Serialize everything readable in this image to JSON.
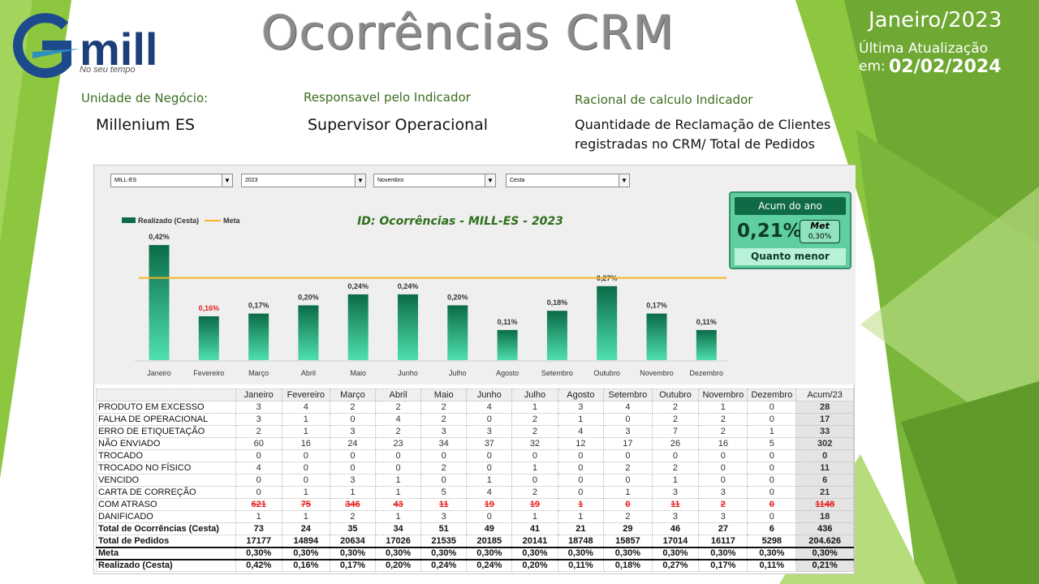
{
  "header": {
    "title": "Ocorrências CRM",
    "period": "Janeiro/2023",
    "update_label": "Última Atualização",
    "update_prefix": "em:",
    "update_date": "02/02/2024",
    "logo_text": "mill",
    "logo_sub": "No seu tempo"
  },
  "info": {
    "unit_label": "Unidade de Negócio:",
    "unit_value": "Millenium ES",
    "owner_label": "Responsavel pelo Indicador",
    "owner_value": "Supervisor Operacional",
    "calc_label": "Racional de calculo Indicador",
    "calc_value": "Quantidade de Reclamação de Clientes registradas no CRM/ Total de Pedidos"
  },
  "filters": {
    "unit": "MILL-ES",
    "year": "2023",
    "month": "Novembro",
    "basket": "Cesta"
  },
  "kpi": {
    "head": "Acum do ano",
    "value": "0,21%",
    "met_label": "Met",
    "met_value": "0,30%",
    "foot": "Quanto menor"
  },
  "chart_data": {
    "type": "bar",
    "title": "ID: Ocorrências - MILL-ES - 2023",
    "categories": [
      "Janeiro",
      "Fevereiro",
      "Março",
      "Abril",
      "Maio",
      "Junho",
      "Julho",
      "Agosto",
      "Setembro",
      "Outubro",
      "Novembro",
      "Dezembro"
    ],
    "series": [
      {
        "name": "Realizado (Cesta)",
        "values": [
          0.42,
          0.16,
          0.17,
          0.2,
          0.24,
          0.24,
          0.2,
          0.11,
          0.18,
          0.27,
          0.17,
          0.11
        ],
        "color": "#1a9a6c"
      },
      {
        "name": "Meta",
        "values": [
          0.3,
          0.3,
          0.3,
          0.3,
          0.3,
          0.3,
          0.3,
          0.3,
          0.3,
          0.3,
          0.3,
          0.3
        ],
        "color": "#f5b324"
      }
    ],
    "labels": [
      "0,42%",
      "0,16%",
      "0,17%",
      "0,20%",
      "0,24%",
      "0,24%",
      "0,20%",
      "0,11%",
      "0,18%",
      "0,27%",
      "0,17%",
      "0,11%"
    ],
    "label_colors": [
      "#333",
      "#e52222",
      "#333",
      "#333",
      "#333",
      "#333",
      "#333",
      "#333",
      "#333",
      "#333",
      "#333",
      "#333"
    ],
    "ylim": [
      0,
      0.45
    ],
    "legend": "top-left",
    "grid": false
  },
  "table": {
    "columns": [
      "Janeiro",
      "Fevereiro",
      "Março",
      "Abril",
      "Maio",
      "Junho",
      "Julho",
      "Agosto",
      "Setembro",
      "Outubro",
      "Novembro",
      "Dezembro",
      "Acum/23"
    ],
    "rows": [
      {
        "label": "PRODUTO EM EXCESSO",
        "values": [
          "3",
          "4",
          "2",
          "2",
          "2",
          "4",
          "1",
          "3",
          "4",
          "2",
          "1",
          "0"
        ],
        "total": "28"
      },
      {
        "label": "FALHA DE OPERACIONAL",
        "values": [
          "3",
          "1",
          "0",
          "4",
          "2",
          "0",
          "2",
          "1",
          "0",
          "2",
          "2",
          "0"
        ],
        "total": "17"
      },
      {
        "label": "ERRO DE ETIQUETAÇÃO",
        "values": [
          "2",
          "1",
          "3",
          "2",
          "3",
          "3",
          "2",
          "4",
          "3",
          "7",
          "2",
          "1"
        ],
        "total": "33"
      },
      {
        "label": "NÃO ENVIADO",
        "values": [
          "60",
          "16",
          "24",
          "23",
          "34",
          "37",
          "32",
          "12",
          "17",
          "26",
          "16",
          "5"
        ],
        "total": "302"
      },
      {
        "label": "TROCADO",
        "values": [
          "0",
          "0",
          "0",
          "0",
          "0",
          "0",
          "0",
          "0",
          "0",
          "0",
          "0",
          "0"
        ],
        "total": "0"
      },
      {
        "label": "TROCADO NO FÍSICO",
        "values": [
          "4",
          "0",
          "0",
          "0",
          "2",
          "0",
          "1",
          "0",
          "2",
          "2",
          "0",
          "0"
        ],
        "total": "11"
      },
      {
        "label": "VENCIDO",
        "values": [
          "0",
          "0",
          "3",
          "1",
          "0",
          "1",
          "0",
          "0",
          "0",
          "1",
          "0",
          "0"
        ],
        "total": "6"
      },
      {
        "label": "CARTA DE CORREÇÃO",
        "values": [
          "0",
          "1",
          "1",
          "1",
          "5",
          "4",
          "2",
          "0",
          "1",
          "3",
          "3",
          "0"
        ],
        "total": "21"
      },
      {
        "label": "COM ATRASO",
        "values": [
          "621",
          "75",
          "346",
          "43",
          "11",
          "19",
          "19",
          "1",
          "0",
          "11",
          "2",
          "0"
        ],
        "total": "1148",
        "struck": true
      },
      {
        "label": "DANIFICADO",
        "values": [
          "1",
          "1",
          "2",
          "1",
          "3",
          "0",
          "1",
          "1",
          "2",
          "3",
          "3",
          "0"
        ],
        "total": "18"
      }
    ],
    "total_occ": {
      "label": "Total de Ocorrências (Cesta)",
      "values": [
        "73",
        "24",
        "35",
        "34",
        "51",
        "49",
        "41",
        "21",
        "29",
        "46",
        "27",
        "6"
      ],
      "total": "436"
    },
    "total_orders": {
      "label": "Total de Pedidos",
      "values": [
        "17177",
        "14894",
        "20634",
        "17026",
        "21535",
        "20185",
        "20141",
        "18748",
        "15857",
        "17014",
        "16117",
        "5298"
      ],
      "total": "204.626"
    },
    "meta": {
      "label": "Meta",
      "values": [
        "0,30%",
        "0,30%",
        "0,30%",
        "0,30%",
        "0,30%",
        "0,30%",
        "0,30%",
        "0,30%",
        "0,30%",
        "0,30%",
        "0,30%",
        "0,30%"
      ],
      "total": "0,30%"
    },
    "realized": {
      "label": "Realizado (Cesta)",
      "values": [
        "0,42%",
        "0,16%",
        "0,17%",
        "0,20%",
        "0,24%",
        "0,24%",
        "0,20%",
        "0,11%",
        "0,18%",
        "0,27%",
        "0,17%",
        "0,11%"
      ],
      "total": "0,21%",
      "status": [
        "bad",
        "good",
        "good",
        "good",
        "good",
        "good",
        "good",
        "good",
        "good",
        "good",
        "good",
        "good"
      ],
      "total_status": "good"
    }
  }
}
